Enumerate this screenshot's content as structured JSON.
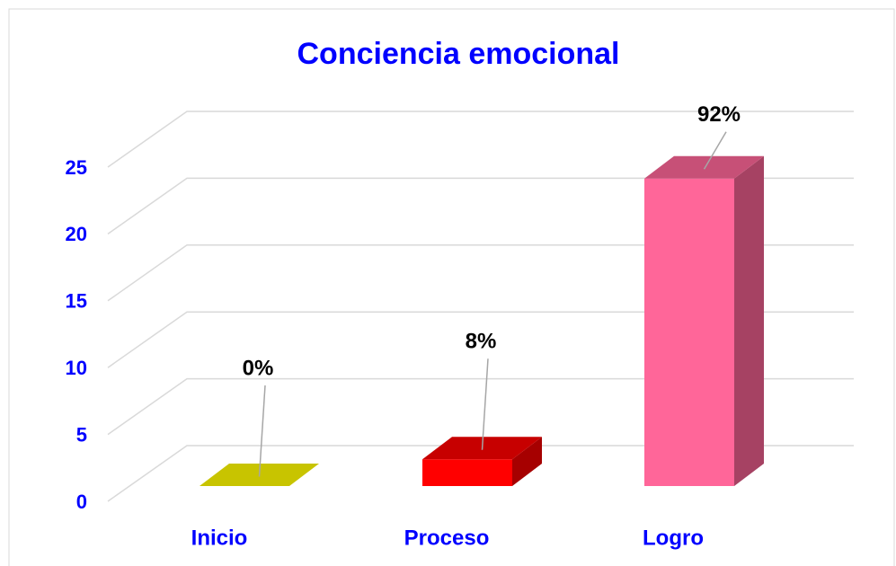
{
  "chart_data": {
    "type": "bar3d",
    "title": "Conciencia emocional",
    "categories": [
      "Inicio",
      "Proceso",
      "Logro"
    ],
    "values": [
      0,
      2,
      23
    ],
    "value_labels": [
      "0%",
      "8%",
      "92%"
    ],
    "colors": [
      "#c8c400",
      "#ff0000",
      "#ff6699"
    ],
    "ylim": [
      0,
      25
    ],
    "yticks": [
      0,
      5,
      10,
      15,
      20,
      25
    ],
    "grid": true
  }
}
